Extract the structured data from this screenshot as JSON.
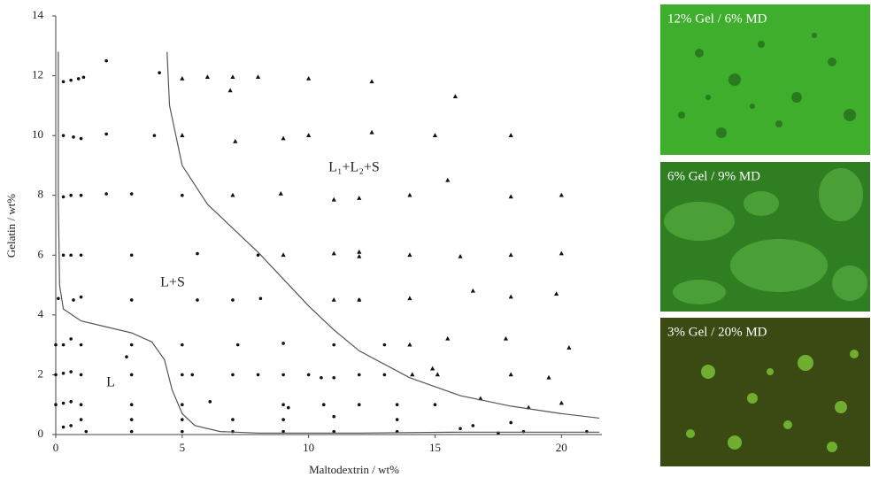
{
  "chart_data": {
    "type": "scatter",
    "x_label": "Maltodextrin / wt%",
    "y_label": "Gelatin / wt%",
    "xlim": [
      0,
      21.6
    ],
    "ylim": [
      0,
      14
    ],
    "xticks": [
      0,
      5,
      10,
      15,
      20
    ],
    "yticks": [
      0,
      2,
      4,
      6,
      8,
      10,
      12,
      14
    ],
    "annotations": [
      "L",
      "L+S",
      "L₁+L₂+S"
    ],
    "series": [
      {
        "marker": "circle",
        "color": "#111",
        "x": [
          0.3,
          0.6,
          0.9,
          1.1,
          0.3,
          0.7,
          1,
          0.3,
          0.6,
          1,
          0.3,
          0.6,
          1,
          0.7,
          1,
          0.1,
          0,
          0.3,
          0.6,
          1,
          0,
          0.3,
          0.6,
          1,
          0,
          0.3,
          0.6,
          1,
          0.3,
          0.6,
          1,
          1.2,
          2,
          2,
          2,
          3,
          3,
          3,
          3,
          2.8,
          3,
          3,
          3,
          3,
          3.9,
          4.1,
          5,
          5,
          5,
          5,
          5,
          5,
          5.6,
          5.6,
          5.4,
          7,
          7,
          7.2,
          6.1,
          7,
          7,
          8,
          8.1,
          8,
          9,
          9,
          9,
          9,
          9,
          9.2,
          10,
          10.5,
          10.6,
          11,
          11,
          11,
          11,
          12,
          12,
          12,
          13,
          13,
          13.5,
          13.5,
          13.5,
          15,
          16,
          16.5,
          17.5,
          18,
          18.5,
          21
        ],
        "y": [
          11.8,
          11.85,
          11.9,
          11.95,
          10,
          9.95,
          9.9,
          7.95,
          8,
          8,
          6,
          6,
          6,
          4.5,
          4.6,
          4.55,
          3,
          3,
          3.2,
          3,
          2,
          2.05,
          2.1,
          2,
          1,
          1.05,
          1.1,
          1,
          0.25,
          0.3,
          0.5,
          0.1,
          12.5,
          10.05,
          8.05,
          8.05,
          6,
          4.5,
          3,
          2.6,
          2,
          1,
          0.5,
          0.1,
          10,
          12.1,
          8,
          3,
          2,
          1,
          0.5,
          0.1,
          6.05,
          4.5,
          2,
          4.5,
          2,
          3,
          1.1,
          0.5,
          0.1,
          2,
          4.55,
          6,
          3.05,
          2,
          1,
          0.5,
          0.1,
          0.9,
          2,
          1.9,
          1,
          3,
          1.9,
          0.6,
          0.1,
          4.5,
          2,
          1,
          3,
          2,
          1,
          0.5,
          0.1,
          1,
          0.2,
          0.3,
          0.05,
          0.4,
          0.1,
          0.1
        ]
      },
      {
        "marker": "triangle",
        "color": "#111",
        "x": [
          5,
          6,
          7,
          8,
          10,
          12.5,
          6.9,
          15.8,
          5,
          7.1,
          9,
          10,
          12.5,
          15,
          18,
          7,
          8.9,
          11,
          12,
          14,
          15.5,
          18,
          20,
          9,
          11,
          12,
          12,
          14,
          16,
          18,
          20,
          11,
          12,
          14,
          16.5,
          18,
          19.8,
          14,
          15.5,
          17.8,
          20.3,
          14.1,
          14.9,
          15.1,
          18,
          19.5,
          16.8,
          20,
          18.7
        ],
        "y": [
          11.9,
          11.95,
          11.95,
          11.95,
          11.9,
          11.8,
          11.5,
          11.3,
          10,
          9.8,
          9.9,
          10,
          10.1,
          10,
          10,
          8,
          8.05,
          7.85,
          7.9,
          8,
          8.5,
          7.95,
          8,
          6,
          6.05,
          6.1,
          5.95,
          6,
          5.95,
          6,
          6.05,
          4.5,
          4.5,
          4.55,
          4.8,
          4.6,
          4.7,
          3,
          3.2,
          3.2,
          2.9,
          2,
          2.2,
          2,
          2,
          1.9,
          1.2,
          1.05,
          0.9
        ]
      },
      {
        "marker": "line",
        "color": "#555",
        "x": [
          0.1,
          0.1,
          0.15,
          0.3,
          1,
          2,
          3,
          3.8,
          4.3,
          4.6,
          5,
          5.5,
          6.5,
          8,
          12,
          16,
          21.5
        ],
        "y": [
          12.8,
          8,
          5,
          4.2,
          3.8,
          3.6,
          3.4,
          3.1,
          2.5,
          1.5,
          0.7,
          0.3,
          0.1,
          0.05,
          0.05,
          0.08,
          0.08
        ]
      },
      {
        "marker": "line",
        "color": "#555",
        "x": [
          4.4,
          4.5,
          5,
          6,
          7,
          8,
          9,
          10,
          11,
          12,
          14,
          16,
          18,
          20,
          21.5
        ],
        "y": [
          12.8,
          11,
          9,
          7.7,
          6.9,
          6.1,
          5.2,
          4.3,
          3.5,
          2.8,
          1.9,
          1.3,
          0.95,
          0.7,
          0.55
        ]
      }
    ]
  },
  "micrographs": [
    {
      "caption": "12% Gel  / 6% MD"
    },
    {
      "caption": "6% Gel / 9% MD"
    },
    {
      "caption": "3% Gel / 20% MD"
    }
  ]
}
